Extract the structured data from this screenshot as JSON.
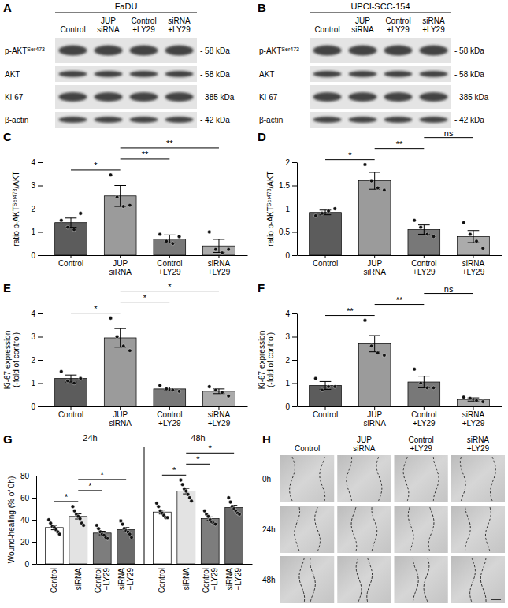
{
  "blots": [
    {
      "panel": "A",
      "title": "FaDU",
      "lanes": [
        "Control",
        "JUP siRNA",
        "Control +LY29",
        "siRNA +LY29"
      ],
      "rows": [
        {
          "label": [
            "p-AKT",
            "Ser473"
          ],
          "size": "- 58 kDa"
        },
        {
          "label": [
            "AKT"
          ],
          "size": "- 58 kDa"
        },
        {
          "label": [
            "Ki-67"
          ],
          "size": "- 385 kDa"
        },
        {
          "label": [
            "β-actin"
          ],
          "size": "- 42 kDa"
        }
      ]
    },
    {
      "panel": "B",
      "title": "UPCI-SCC-154",
      "lanes": [
        "Control",
        "JUP siRNA",
        "Control +LY29",
        "siRNA +LY29"
      ],
      "rows": [
        {
          "label": [
            "p-AKT",
            "Ser473"
          ],
          "size": "- 58 kDa"
        },
        {
          "label": [
            "AKT"
          ],
          "size": "- 58 kDa"
        },
        {
          "label": [
            "Ki-67"
          ],
          "size": "- 385 kDa"
        },
        {
          "label": [
            "β-actin"
          ],
          "size": "- 42 kDa"
        }
      ]
    }
  ],
  "chart_data": [
    {
      "type": "bar",
      "panel": "C",
      "ylabel": [
        [
          "ratio p-AKT",
          "Ser473",
          "/AKT"
        ]
      ],
      "categories": [
        "Control",
        "JUP siRNA",
        "Control +LY29",
        "siRNA +LY29"
      ],
      "colors": [
        "#5c5c5c",
        "#9b9b9b",
        "#787878",
        "#ababab"
      ],
      "values": [
        1.4,
        2.55,
        0.7,
        0.4
      ],
      "errors": [
        0.2,
        0.45,
        0.17,
        0.28
      ],
      "points": [
        [
          1.5,
          1.2,
          1.1,
          1.8
        ],
        [
          3.45,
          2.5,
          2.1,
          2.15
        ],
        [
          0.9,
          0.6,
          0.5,
          0.8
        ],
        [
          1.0,
          0.25,
          0.1,
          0.25
        ]
      ],
      "ylim": [
        0,
        4
      ],
      "yticks": [
        0,
        1,
        2,
        3,
        4
      ],
      "significance": [
        {
          "pair": [
            "Control",
            "JUP siRNA"
          ],
          "label": "*"
        },
        {
          "pair": [
            "JUP siRNA",
            "Control +LY29"
          ],
          "label": "**"
        },
        {
          "pair": [
            "JUP siRNA",
            "siRNA +LY29"
          ],
          "label": "**"
        }
      ]
    },
    {
      "type": "bar",
      "panel": "D",
      "ylabel": [
        [
          "ratio p-AKT",
          "Ser473",
          "/AKT"
        ]
      ],
      "categories": [
        "Control",
        "JUP siRNA",
        "Control +LY29",
        "siRNA +LY29"
      ],
      "colors": [
        "#5c5c5c",
        "#9b9b9b",
        "#787878",
        "#ababab"
      ],
      "values": [
        0.92,
        1.6,
        0.55,
        0.4
      ],
      "errors": [
        0.05,
        0.18,
        0.1,
        0.13
      ],
      "points": [
        [
          0.85,
          0.9,
          0.95,
          1.0
        ],
        [
          1.95,
          1.6,
          1.45,
          1.4
        ],
        [
          0.75,
          0.6,
          0.45,
          0.4
        ],
        [
          0.7,
          0.45,
          0.3,
          0.15
        ]
      ],
      "ylim": [
        0,
        2
      ],
      "yticks": [
        0,
        0.5,
        1,
        1.5,
        2
      ],
      "significance": [
        {
          "pair": [
            "Control",
            "JUP siRNA"
          ],
          "label": "*"
        },
        {
          "pair": [
            "JUP siRNA",
            "Control +LY29"
          ],
          "label": "**"
        },
        {
          "pair": [
            "Control +LY29",
            "siRNA +LY29"
          ],
          "label": "ns"
        }
      ]
    },
    {
      "type": "bar",
      "panel": "E",
      "ylabel": [
        [
          "Ki-67 expression"
        ],
        [
          "(-fold of control)"
        ]
      ],
      "categories": [
        "Control",
        "JUP siRNA",
        "Control +LY29",
        "siRNA +LY29"
      ],
      "colors": [
        "#5c5c5c",
        "#9b9b9b",
        "#787878",
        "#ababab"
      ],
      "values": [
        1.2,
        2.95,
        0.75,
        0.65
      ],
      "errors": [
        0.15,
        0.4,
        0.08,
        0.1
      ],
      "points": [
        [
          1.5,
          1.1,
          1.0,
          1.2
        ],
        [
          3.8,
          3.0,
          2.6,
          2.4
        ],
        [
          0.9,
          0.75,
          0.7,
          0.65
        ],
        [
          0.85,
          0.7,
          0.6,
          0.45
        ]
      ],
      "ylim": [
        0,
        4
      ],
      "yticks": [
        0,
        1,
        2,
        3,
        4
      ],
      "significance": [
        {
          "pair": [
            "Control",
            "JUP siRNA"
          ],
          "label": "*"
        },
        {
          "pair": [
            "JUP siRNA",
            "Control +LY29"
          ],
          "label": "*"
        },
        {
          "pair": [
            "JUP siRNA",
            "siRNA +LY29"
          ],
          "label": "*"
        }
      ]
    },
    {
      "type": "bar",
      "panel": "F",
      "ylabel": [
        [
          "Ki-67 expression"
        ],
        [
          "(-fold of control)"
        ]
      ],
      "categories": [
        "Control",
        "JUP siRNA",
        "Control +LY29",
        "siRNA +LY29"
      ],
      "colors": [
        "#5c5c5c",
        "#9b9b9b",
        "#787878",
        "#ababab"
      ],
      "values": [
        0.9,
        2.7,
        1.05,
        0.3
      ],
      "errors": [
        0.17,
        0.35,
        0.25,
        0.07
      ],
      "points": [
        [
          1.2,
          0.7,
          0.85,
          0.85
        ],
        [
          3.7,
          2.6,
          2.3,
          2.2
        ],
        [
          1.6,
          1.0,
          0.8,
          0.8
        ],
        [
          0.4,
          0.35,
          0.25,
          0.2
        ]
      ],
      "ylim": [
        0,
        4
      ],
      "yticks": [
        0,
        1,
        2,
        3,
        4
      ],
      "significance": [
        {
          "pair": [
            "Control",
            "JUP siRNA"
          ],
          "label": "**"
        },
        {
          "pair": [
            "JUP siRNA",
            "Control +LY29"
          ],
          "label": "**"
        },
        {
          "pair": [
            "Control +LY29",
            "siRNA +LY29"
          ],
          "label": "ns"
        }
      ]
    },
    {
      "type": "grouped_bar",
      "panel": "G",
      "ylabel": [
        [
          "Wound-healing (% of 0h)"
        ]
      ],
      "categories": [
        "Control",
        "siRNA",
        "Control +LY29",
        "siRNA +LY29"
      ],
      "colors": [
        "#ffffff",
        "#e3e3e3",
        "#7d7d7d",
        "#6a6a6a"
      ],
      "ylim": [
        0,
        80
      ],
      "yticks": [
        0,
        20,
        40,
        60,
        80
      ],
      "series": [
        {
          "name": "24h",
          "values": [
            33,
            43,
            28,
            31
          ],
          "errors": [
            2,
            2.3,
            1.6,
            2
          ],
          "points": [
            [
              40,
              37,
              34,
              33,
              31,
              29,
              27
            ],
            [
              52,
              48,
              45,
              43,
              41,
              37,
              35
            ],
            [
              35,
              32,
              29,
              27,
              26,
              24,
              23
            ],
            [
              39,
              36,
              32,
              30,
              29,
              27,
              24
            ]
          ],
          "significance": [
            {
              "pair": [
                "Control",
                "siRNA"
              ],
              "label": "*"
            },
            {
              "pair": [
                "siRNA",
                "Control +LY29"
              ],
              "label": "*"
            },
            {
              "pair": [
                "siRNA",
                "siRNA +LY29"
              ],
              "label": "*"
            }
          ]
        },
        {
          "name": "48h",
          "values": [
            47,
            66,
            41,
            51
          ],
          "errors": [
            1.8,
            2.5,
            1.6,
            2.1
          ],
          "points": [
            [
              55,
              52,
              48,
              46,
              44,
              42,
              42
            ],
            [
              76,
              72,
              68,
              66,
              63,
              60,
              57
            ],
            [
              48,
              45,
              43,
              40,
              38,
              37,
              36
            ],
            [
              60,
              56,
              52,
              50,
              48,
              46,
              45
            ]
          ],
          "significance": [
            {
              "pair": [
                "Control",
                "siRNA"
              ],
              "label": "*"
            },
            {
              "pair": [
                "siRNA",
                "Control +LY29"
              ],
              "label": "*"
            },
            {
              "pair": [
                "siRNA",
                "siRNA +LY29"
              ],
              "label": "*"
            }
          ]
        }
      ]
    }
  ],
  "wound_images": {
    "panel": "H",
    "columns": [
      "Control",
      "JUP siRNA",
      "Control +LY29",
      "siRNA +LY29"
    ],
    "rows": [
      "0h",
      "24h",
      "48h"
    ]
  }
}
